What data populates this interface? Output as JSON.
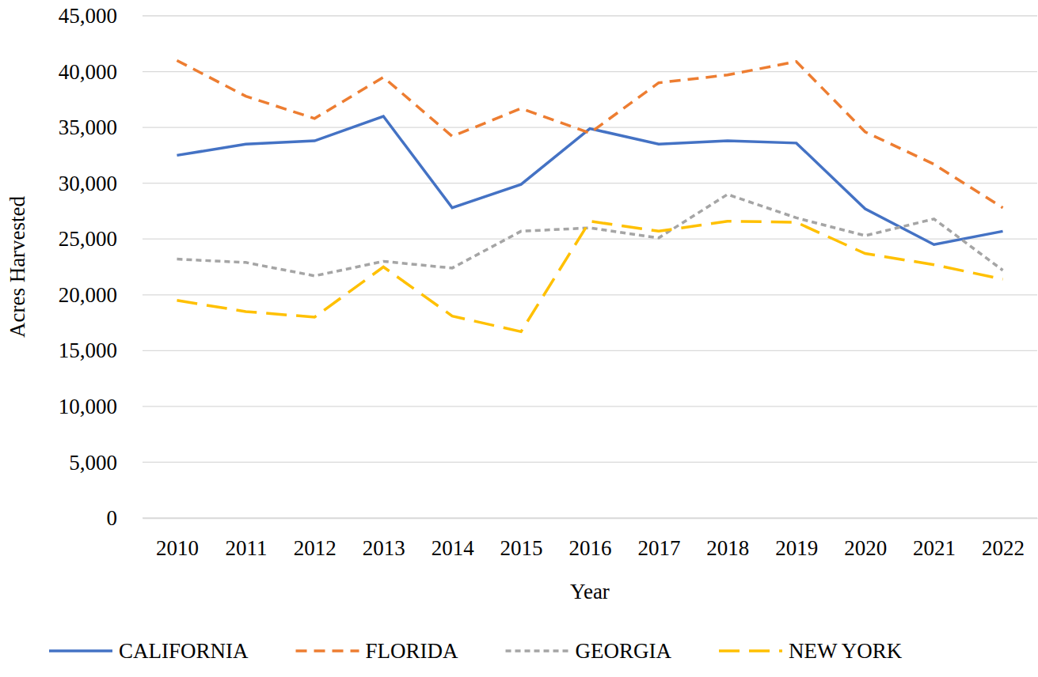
{
  "chart_data": {
    "type": "line",
    "x_label": "Year",
    "y_label": "Acres Harvested",
    "categories": [
      "2010",
      "2011",
      "2012",
      "2013",
      "2014",
      "2015",
      "2016",
      "2017",
      "2018",
      "2019",
      "2020",
      "2021",
      "2022"
    ],
    "series": [
      {
        "name": "CALIFORNIA",
        "color": "#4472c4",
        "line_style": "solid",
        "values": [
          32500,
          33500,
          33800,
          36000,
          27800,
          29900,
          34900,
          33500,
          33800,
          33600,
          27700,
          24500,
          25700
        ]
      },
      {
        "name": "FLORIDA",
        "color": "#ed7d31",
        "line_style": "dashed",
        "values": [
          41000,
          37800,
          35800,
          39500,
          34200,
          36700,
          34500,
          39000,
          39700,
          40900,
          34600,
          31700,
          27800
        ]
      },
      {
        "name": "GEORGIA",
        "color": "#a5a5a5",
        "line_style": "short-dash",
        "values": [
          23200,
          22900,
          21700,
          23000,
          22400,
          25700,
          26000,
          25100,
          29000,
          26900,
          25300,
          26800,
          22200
        ]
      },
      {
        "name": "NEW YORK",
        "color": "#ffc000",
        "line_style": "long-dash",
        "values": [
          19500,
          18500,
          18000,
          22500,
          18100,
          16700,
          26600,
          25700,
          26600,
          26500,
          23700,
          22700,
          21400
        ]
      }
    ],
    "ylim": [
      0,
      45000
    ],
    "yticks": [
      0,
      {
        "value": 5000,
        "label": "5,000"
      },
      {
        "value": 10000,
        "label": "10,000"
      },
      {
        "value": 15000,
        "label": "15,000"
      },
      {
        "value": 20000,
        "label": "20,000"
      },
      {
        "value": 25000,
        "label": "25,000"
      },
      {
        "value": 30000,
        "label": "30,000"
      },
      {
        "value": 35000,
        "label": "35,000"
      },
      {
        "value": 40000,
        "label": "40,000"
      },
      {
        "value": 45000,
        "label": "45,000"
      }
    ],
    "grid": true,
    "legend": "bottom"
  }
}
